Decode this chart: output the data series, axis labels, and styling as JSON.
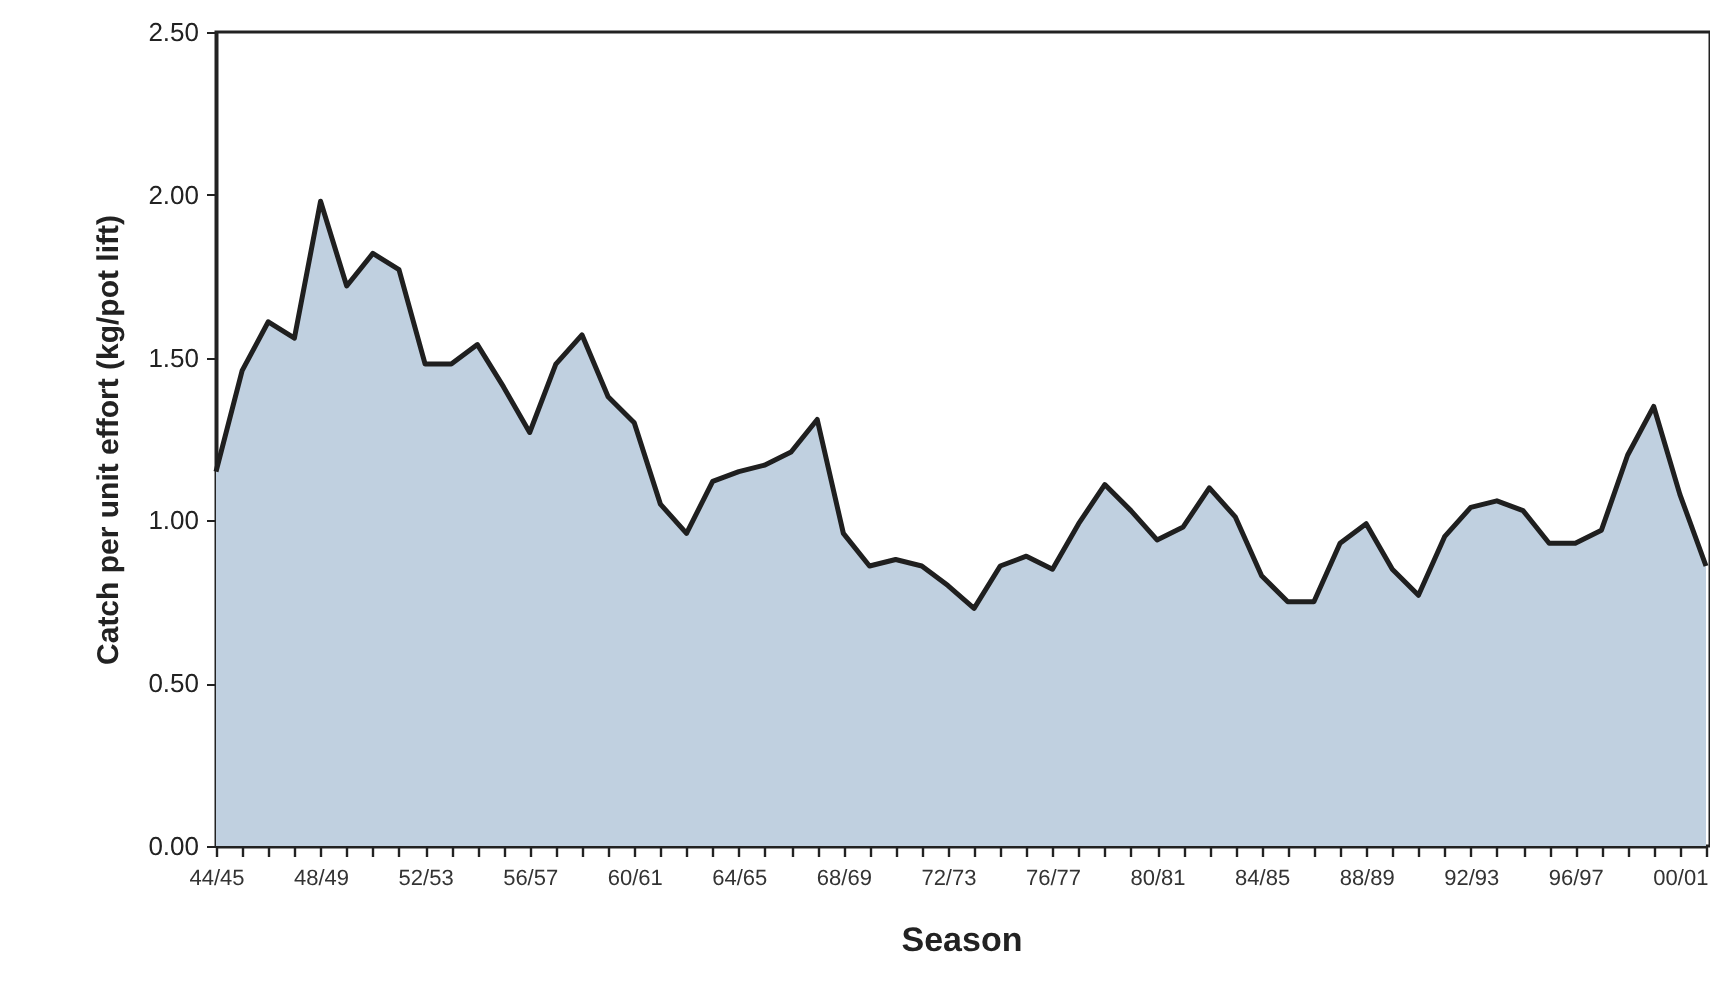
{
  "chart_data": {
    "type": "area",
    "xlabel": "Season",
    "ylabel": "Catch per unit effort (kg/pot lift)",
    "categories": [
      "44/45",
      null,
      null,
      null,
      "48/49",
      null,
      null,
      null,
      "52/53",
      null,
      null,
      null,
      "56/57",
      null,
      null,
      null,
      "60/61",
      null,
      null,
      null,
      "64/65",
      null,
      null,
      null,
      "68/69",
      null,
      null,
      null,
      "72/73",
      null,
      null,
      null,
      "76/77",
      null,
      null,
      null,
      "80/81",
      null,
      null,
      null,
      "84/85",
      null,
      null,
      null,
      "88/89",
      null,
      null,
      null,
      "92/93",
      null,
      null,
      null,
      "96/97",
      null,
      null,
      null,
      "00/01",
      null
    ],
    "series": [
      {
        "color": "#c0d0e0",
        "values": [
          1.15,
          1.46,
          1.61,
          1.56,
          1.98,
          1.72,
          1.82,
          1.77,
          1.48,
          1.48,
          1.54,
          1.41,
          1.27,
          1.48,
          1.57,
          1.38,
          1.3,
          1.05,
          0.96,
          1.12,
          1.15,
          1.17,
          1.21,
          1.31,
          0.96,
          0.86,
          0.88,
          0.86,
          0.8,
          0.73,
          0.86,
          0.89,
          0.85,
          0.99,
          1.11,
          1.03,
          0.94,
          0.98,
          1.1,
          1.01,
          0.83,
          0.75,
          0.75,
          0.93,
          0.99,
          0.85,
          0.77,
          0.95,
          1.04,
          1.06,
          1.03,
          0.93,
          0.93,
          0.97,
          1.2,
          1.35,
          1.08,
          0.86
        ]
      }
    ],
    "ylim": [
      0,
      2.5
    ],
    "yticks": [
      {
        "value": 0,
        "label": "0.00"
      },
      {
        "value": 0.5,
        "label": "0.50"
      },
      {
        "value": 1,
        "label": "1.00"
      },
      {
        "value": 1.5,
        "label": "1.50"
      },
      {
        "value": 2,
        "label": "2.00"
      },
      {
        "value": 2.5,
        "label": "2.50"
      }
    ],
    "grid": false,
    "marker": "none",
    "line_style": "solid"
  }
}
